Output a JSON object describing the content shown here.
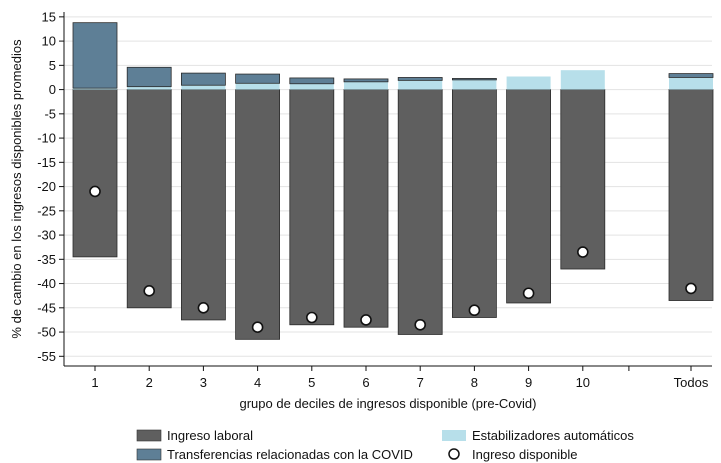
{
  "chart_data": {
    "type": "bar",
    "title": "",
    "xlabel": "grupo de deciles de ingresos disponible (pre-Covid)",
    "ylabel": "% de cambio en los ingresos disponibles promedios",
    "ylim": [
      -57,
      16
    ],
    "yticks": [
      15,
      10,
      5,
      0,
      -5,
      -10,
      -15,
      -20,
      -25,
      -30,
      -35,
      -40,
      -45,
      -50,
      -55
    ],
    "grid": true,
    "legend_position": "bottom",
    "categories": [
      "1",
      "2",
      "3",
      "4",
      "5",
      "6",
      "7",
      "8",
      "9",
      "10",
      "Todos"
    ],
    "series": [
      {
        "name": "Ingreso laboral",
        "color": "#5f5f5f",
        "kind": "bar",
        "values": [
          -34.5,
          -45,
          -47.5,
          -51.5,
          -48.5,
          -49,
          -50.5,
          -47,
          -44,
          -37,
          -43.5
        ]
      },
      {
        "name": "Estabilizadores automáticos",
        "color": "#b7dfea",
        "kind": "bar",
        "values": [
          0.3,
          0.6,
          0.9,
          1.3,
          1.2,
          1.6,
          1.9,
          2.0,
          2.7,
          4.0,
          2.5
        ]
      },
      {
        "name": "Transferencias relacionadas con la COVID",
        "color": "#5e7f96",
        "kind": "bar",
        "values": [
          13.5,
          4.0,
          2.5,
          1.9,
          1.2,
          0.6,
          0.6,
          0.3,
          0.0,
          0.0,
          0.8
        ]
      },
      {
        "name": "Ingreso disponible",
        "color": "#ffffff",
        "kind": "marker",
        "values": [
          -21,
          -41.5,
          -45,
          -49,
          -47,
          -47.5,
          -48.5,
          -45.5,
          -42,
          -33.5,
          -41
        ]
      }
    ],
    "legend": {
      "labor": "Ingreso laboral",
      "stabilizers": "Estabilizadores automáticos",
      "transfers": "Transferencias relacionadas con la COVID",
      "disposable": "Ingreso disponible"
    }
  }
}
